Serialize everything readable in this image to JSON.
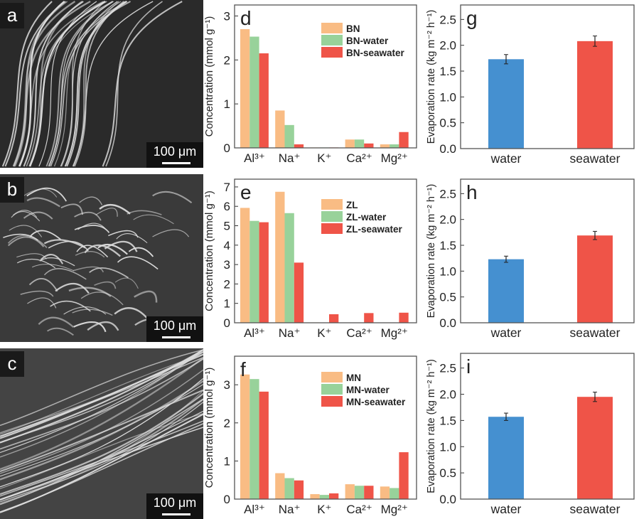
{
  "images": [
    {
      "label": "a",
      "scale_bar": "100 μm"
    },
    {
      "label": "b",
      "scale_bar": "100 μm"
    },
    {
      "label": "c",
      "scale_bar": "100 μm"
    }
  ],
  "colors": {
    "orange": "#f9bc84",
    "green": "#98d29a",
    "red": "#ef5448",
    "blue": "#4590d0"
  },
  "chart_data": [
    {
      "id": "d",
      "type": "bar",
      "panel_label": "d",
      "ylabel": "Concentration (mmol g⁻¹)",
      "categories": [
        "Al³⁺",
        "Na⁺",
        "K⁺",
        "Ca²⁺",
        "Mg²⁺"
      ],
      "ylim": [
        0,
        3.25
      ],
      "yticks": [
        0,
        1,
        2,
        3
      ],
      "legend_position": "top-right",
      "series": [
        {
          "name": "BN",
          "values": [
            2.7,
            0.85,
            0.01,
            0.19,
            0.08
          ]
        },
        {
          "name": "BN-water",
          "values": [
            2.53,
            0.52,
            0.01,
            0.19,
            0.08
          ]
        },
        {
          "name": "BN-seawater",
          "values": [
            2.15,
            0.08,
            0.01,
            0.1,
            0.36
          ]
        }
      ]
    },
    {
      "id": "e",
      "type": "bar",
      "panel_label": "e",
      "ylabel": "Concentration (mmol g⁻¹)",
      "categories": [
        "Al³⁺",
        "Na⁺",
        "K⁺",
        "Ca²⁺",
        "Mg²⁺"
      ],
      "ylim": [
        0,
        7.4
      ],
      "yticks": [
        0,
        1,
        2,
        3,
        4,
        5,
        6,
        7
      ],
      "legend_position": "top-right",
      "series": [
        {
          "name": "ZL",
          "values": [
            5.92,
            6.75,
            0.02,
            0,
            0
          ]
        },
        {
          "name": "ZL-water",
          "values": [
            5.25,
            5.65,
            0.01,
            0,
            0
          ]
        },
        {
          "name": "ZL-seawater",
          "values": [
            5.18,
            3.1,
            0.44,
            0.5,
            0.52
          ]
        }
      ]
    },
    {
      "id": "f",
      "type": "bar",
      "panel_label": "f",
      "ylabel": "Concentration (mmol g⁻¹)",
      "categories": [
        "Al³⁺",
        "Na⁺",
        "K⁺",
        "Ca²⁺",
        "Mg²⁺"
      ],
      "ylim": [
        0,
        3.75
      ],
      "yticks": [
        0,
        1,
        2,
        3
      ],
      "legend_position": "top-right",
      "series": [
        {
          "name": "MN",
          "values": [
            3.27,
            0.68,
            0.13,
            0.39,
            0.33
          ]
        },
        {
          "name": "MN-water",
          "values": [
            3.15,
            0.55,
            0.11,
            0.35,
            0.29
          ]
        },
        {
          "name": "MN-seawater",
          "values": [
            2.82,
            0.49,
            0.15,
            0.35,
            1.23
          ]
        }
      ]
    },
    {
      "id": "g",
      "type": "bar",
      "panel_label": "g",
      "ylabel": "Evaporation rate (kg m⁻² h⁻¹)",
      "categories": [
        "water",
        "seawater"
      ],
      "ylim": [
        0,
        2.78
      ],
      "yticks": [
        "0.0",
        "0.5",
        "1.0",
        "1.5",
        "2.0",
        "2.5"
      ],
      "values": [
        1.73,
        2.08
      ],
      "errors": [
        0.09,
        0.1
      ]
    },
    {
      "id": "h",
      "type": "bar",
      "panel_label": "h",
      "ylabel": "Evaporation rate (kg m⁻² h⁻¹)",
      "categories": [
        "water",
        "seawater"
      ],
      "ylim": [
        0,
        2.78
      ],
      "yticks": [
        "0.0",
        "0.5",
        "1.0",
        "1.5",
        "2.0",
        "2.5"
      ],
      "values": [
        1.23,
        1.69
      ],
      "errors": [
        0.06,
        0.08
      ]
    },
    {
      "id": "i",
      "type": "bar",
      "panel_label": "i",
      "ylabel": "Evaporation rate (kg m⁻² h⁻¹)",
      "categories": [
        "water",
        "seawater"
      ],
      "ylim": [
        0,
        2.78
      ],
      "yticks": [
        "0.0",
        "0.5",
        "1.0",
        "1.5",
        "2.0",
        "2.5"
      ],
      "values": [
        1.57,
        1.95
      ],
      "errors": [
        0.07,
        0.09
      ]
    }
  ]
}
